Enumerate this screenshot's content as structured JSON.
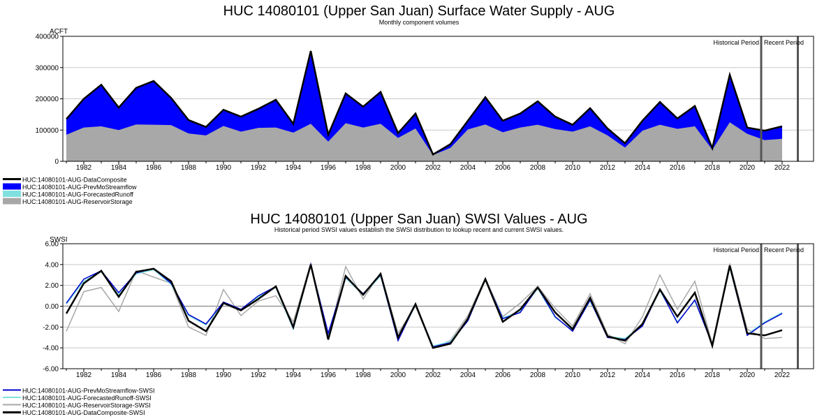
{
  "chart_data": [
    {
      "type": "area",
      "title": "HUC 14080101 (Upper San Juan) Surface Water Supply - AUG",
      "subtitle": "Monthly component volumes",
      "ylabel": "ACFT",
      "ylim": [
        0,
        400000
      ],
      "yticks": [
        0,
        100000,
        200000,
        300000,
        400000
      ],
      "xlim": [
        1980.8,
        2023.8
      ],
      "xticks": [
        1982,
        1984,
        1986,
        1988,
        1990,
        1992,
        1994,
        1996,
        1998,
        2000,
        2002,
        2004,
        2006,
        2008,
        2010,
        2012,
        2014,
        2016,
        2018,
        2020,
        2022
      ],
      "grid": true,
      "period_labels": [
        "Historical Period",
        "Recent Period"
      ],
      "period_lines": [
        2020.8,
        2022.9
      ],
      "x": [
        1981,
        1982,
        1983,
        1984,
        1985,
        1986,
        1987,
        1988,
        1989,
        1990,
        1991,
        1992,
        1993,
        1994,
        1995,
        1996,
        1997,
        1998,
        1999,
        2000,
        2001,
        2002,
        2003,
        2004,
        2005,
        2006,
        2007,
        2008,
        2009,
        2010,
        2011,
        2012,
        2013,
        2014,
        2015,
        2016,
        2017,
        2018,
        2019,
        2020,
        2021,
        2022
      ],
      "series": [
        {
          "name": "HUC:14080101-AUG-DataComposite",
          "color": "#000000",
          "values": [
            135000,
            200000,
            245000,
            172000,
            235000,
            257000,
            203000,
            132000,
            110000,
            165000,
            143000,
            168000,
            197000,
            120000,
            353000,
            85000,
            217000,
            175000,
            222000,
            90000,
            153000,
            22000,
            55000,
            130000,
            205000,
            130000,
            153000,
            192000,
            143000,
            117000,
            170000,
            105000,
            58000,
            130000,
            190000,
            137000,
            177000,
            42000,
            277000,
            108000,
            98000,
            112000
          ]
        },
        {
          "name": "HUC:14080101-AUG-PrevMoStreamflow",
          "color": "#0000ff",
          "values": [
            50000,
            92000,
            133000,
            72000,
            117000,
            140000,
            87000,
            43000,
            27000,
            52000,
            48000,
            61000,
            89000,
            28000,
            233000,
            22000,
            95000,
            67000,
            102000,
            15000,
            48000,
            2000,
            12000,
            28000,
            87000,
            37000,
            45000,
            75000,
            40000,
            22000,
            58000,
            22000,
            14000,
            32000,
            73000,
            33000,
            65000,
            5000,
            152000,
            20000,
            30000,
            40000
          ]
        },
        {
          "name": "HUC:14080101-AUG-ForecastedRunoff",
          "color": "#80e0e0",
          "values": [
            0,
            0,
            0,
            0,
            0,
            0,
            0,
            0,
            0,
            0,
            0,
            0,
            0,
            0,
            0,
            0,
            0,
            0,
            0,
            0,
            0,
            0,
            0,
            0,
            0,
            0,
            0,
            0,
            0,
            0,
            0,
            0,
            0,
            0,
            0,
            0,
            0,
            0,
            0,
            0,
            0,
            0
          ]
        },
        {
          "name": "HUC:14080101-AUG-ReservoirStorage",
          "color": "#a8a8a8",
          "values": [
            85000,
            108000,
            112000,
            100000,
            118000,
            117000,
            116000,
            89000,
            83000,
            113000,
            95000,
            107000,
            108000,
            92000,
            120000,
            63000,
            122000,
            108000,
            120000,
            75000,
            105000,
            20000,
            43000,
            102000,
            118000,
            93000,
            108000,
            117000,
            103000,
            95000,
            112000,
            83000,
            44000,
            98000,
            117000,
            104000,
            112000,
            37000,
            125000,
            88000,
            68000,
            72000
          ]
        }
      ]
    },
    {
      "type": "line",
      "title": "HUC 14080101 (Upper San Juan) SWSI Values - AUG",
      "subtitle": "Historical period SWSI values establish the SWSI distribution to lookup recent and current SWSI values.",
      "ylabel": "SWSI",
      "ylim": [
        -6,
        6
      ],
      "yticks": [
        -6,
        -4,
        -2,
        0,
        2,
        4,
        6
      ],
      "ytick_labels": [
        "-6.00",
        "-4.00",
        "-2.00",
        "0.00",
        "2.00",
        "4.00",
        "6.00"
      ],
      "xlim": [
        1980.8,
        2023.8
      ],
      "xticks": [
        1982,
        1984,
        1986,
        1988,
        1990,
        1992,
        1994,
        1996,
        1998,
        2000,
        2002,
        2004,
        2006,
        2008,
        2010,
        2012,
        2014,
        2016,
        2018,
        2020,
        2022
      ],
      "grid": true,
      "period_labels": [
        "Historical Period",
        "Recent Period"
      ],
      "period_lines": [
        2020.8,
        2022.9
      ],
      "x": [
        1981,
        1982,
        1983,
        1984,
        1985,
        1986,
        1987,
        1988,
        1989,
        1990,
        1991,
        1992,
        1993,
        1994,
        1995,
        1996,
        1997,
        1998,
        1999,
        2000,
        2001,
        2002,
        2003,
        2004,
        2005,
        2006,
        2007,
        2008,
        2009,
        2010,
        2011,
        2012,
        2013,
        2014,
        2015,
        2016,
        2017,
        2018,
        2019,
        2020,
        2021,
        2022
      ],
      "series": [
        {
          "name": "HUC:14080101-AUG-PrevMoStreamflow-SWSI",
          "color": "#0000cc",
          "values": [
            0.3,
            2.6,
            3.4,
            1.3,
            3.2,
            3.6,
            2.2,
            -0.8,
            -1.7,
            0.4,
            -0.3,
            1.0,
            1.9,
            -2.1,
            4.0,
            -2.6,
            2.8,
            1.2,
            3.0,
            -3.3,
            0.2,
            -3.9,
            -3.5,
            -1.4,
            2.6,
            -1.2,
            -0.6,
            1.8,
            -1.0,
            -2.4,
            0.6,
            -3.0,
            -3.2,
            -1.9,
            1.6,
            -1.6,
            0.6,
            -3.7,
            3.8,
            -2.8,
            -1.6,
            -0.7
          ]
        },
        {
          "name": "HUC:14080101-AUG-ForecastedRunoff-SWSI",
          "color": "#80e0e0",
          "values": [
            0.2,
            2.4,
            3.3,
            1.1,
            3.1,
            3.5,
            2.1,
            -0.9,
            -1.8,
            0.3,
            -0.4,
            0.9,
            1.8,
            -2.2,
            3.9,
            -2.7,
            2.7,
            1.1,
            2.9,
            -3.2,
            0.1,
            -3.8,
            -3.4,
            -1.3,
            2.5,
            -1.1,
            -0.5,
            1.7,
            -1.1,
            -2.3,
            0.5,
            -2.9,
            -3.1,
            -1.8,
            1.5,
            -1.5,
            0.5,
            -3.6,
            3.7,
            -2.7,
            -1.5,
            -0.6
          ]
        },
        {
          "name": "HUC:14080101-AUG-ReservoirStorage-SWSI",
          "color": "#a8a8a8",
          "values": [
            -2.4,
            1.4,
            1.8,
            -0.5,
            3.4,
            2.8,
            2.2,
            -2.0,
            -2.8,
            1.6,
            -0.9,
            0.5,
            1.0,
            -1.5,
            4.1,
            -3.1,
            3.8,
            0.7,
            3.2,
            -2.6,
            0.0,
            -4.0,
            -3.3,
            -0.9,
            2.7,
            -1.0,
            0.3,
            1.9,
            -0.2,
            -1.9,
            1.2,
            -2.7,
            -3.6,
            -1.0,
            3.0,
            -0.3,
            2.4,
            -3.6,
            4.1,
            -2.2,
            -3.1,
            -3.0
          ]
        },
        {
          "name": "HUC:14080101-AUG-DataComposite-SWSI",
          "color": "#000000",
          "values": [
            -0.7,
            2.2,
            3.4,
            0.9,
            3.3,
            3.6,
            2.4,
            -1.4,
            -2.4,
            0.3,
            -0.4,
            0.7,
            1.9,
            -2.0,
            4.0,
            -3.2,
            2.9,
            1.1,
            3.1,
            -3.0,
            0.2,
            -4.0,
            -3.6,
            -1.2,
            2.6,
            -1.5,
            -0.3,
            1.8,
            -0.6,
            -2.2,
            0.8,
            -2.9,
            -3.3,
            -1.7,
            1.6,
            -1.0,
            1.3,
            -3.8,
            3.9,
            -2.6,
            -2.8,
            -2.3
          ]
        }
      ]
    }
  ]
}
